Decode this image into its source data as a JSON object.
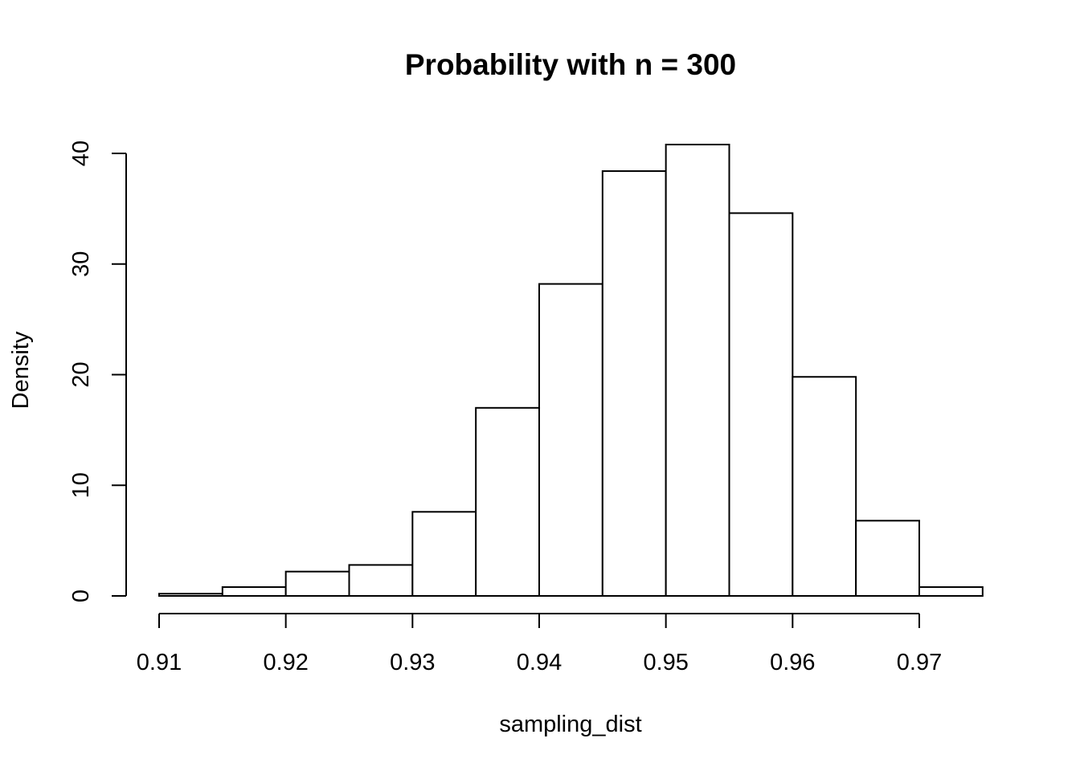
{
  "chart_data": {
    "type": "bar",
    "title": "Probability with n = 300",
    "xlabel": "sampling_dist",
    "ylabel": "Density",
    "bins": [
      {
        "x0": 0.91,
        "x1": 0.915,
        "density": 0.2
      },
      {
        "x0": 0.915,
        "x1": 0.92,
        "density": 0.8
      },
      {
        "x0": 0.92,
        "x1": 0.925,
        "density": 2.2
      },
      {
        "x0": 0.925,
        "x1": 0.93,
        "density": 2.8
      },
      {
        "x0": 0.93,
        "x1": 0.935,
        "density": 7.6
      },
      {
        "x0": 0.935,
        "x1": 0.94,
        "density": 17.0
      },
      {
        "x0": 0.94,
        "x1": 0.945,
        "density": 28.2
      },
      {
        "x0": 0.945,
        "x1": 0.95,
        "density": 38.4
      },
      {
        "x0": 0.95,
        "x1": 0.955,
        "density": 40.8
      },
      {
        "x0": 0.955,
        "x1": 0.96,
        "density": 34.6
      },
      {
        "x0": 0.96,
        "x1": 0.965,
        "density": 19.8
      },
      {
        "x0": 0.965,
        "x1": 0.97,
        "density": 6.8
      },
      {
        "x0": 0.97,
        "x1": 0.975,
        "density": 0.8
      }
    ],
    "x_ticks": [
      0.91,
      0.92,
      0.93,
      0.94,
      0.95,
      0.96,
      0.97
    ],
    "x_tick_labels": [
      "0.91",
      "0.92",
      "0.93",
      "0.94",
      "0.95",
      "0.96",
      "0.97"
    ],
    "y_ticks": [
      0,
      10,
      20,
      30,
      40
    ],
    "y_tick_labels": [
      "0",
      "10",
      "20",
      "30",
      "40"
    ],
    "xlim": [
      0.91,
      0.975
    ],
    "ylim": [
      0,
      40
    ],
    "grid": false,
    "bar_fill": "#ffffff",
    "bar_stroke": "#000000"
  }
}
